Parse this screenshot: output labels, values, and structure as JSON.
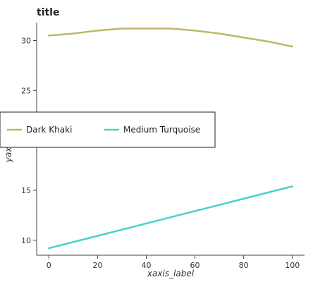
{
  "chart_data": {
    "type": "line",
    "title": "title",
    "xlabel": "xaxis_label",
    "ylabel": "yaxis_label",
    "xlim": [
      -5,
      105
    ],
    "ylim": [
      8.5,
      31.8
    ],
    "xticks": [
      0,
      20,
      40,
      60,
      80,
      100
    ],
    "yticks": [
      10,
      15,
      20,
      25,
      30
    ],
    "grid": false,
    "legend_position": "center-left",
    "series": [
      {
        "name": "Dark Khaki",
        "color": "#bdb76b",
        "x": [
          0,
          10,
          20,
          30,
          40,
          50,
          60,
          70,
          80,
          90,
          100
        ],
        "y": [
          30.5,
          30.7,
          31.0,
          31.2,
          31.2,
          31.2,
          31.0,
          30.7,
          30.3,
          29.9,
          29.4
        ]
      },
      {
        "name": "Medium Turquoise",
        "color": "#48d1cc",
        "x": [
          0,
          100
        ],
        "y": [
          9.2,
          15.4
        ]
      }
    ]
  }
}
